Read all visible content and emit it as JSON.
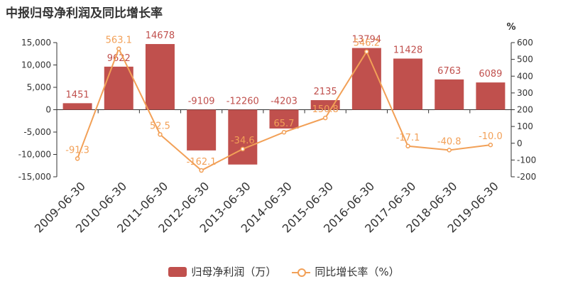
{
  "title": "中报归母净利润及同比增长率",
  "colors": {
    "bar": "#c0504d",
    "line": "#f2a057",
    "axis": "#333333",
    "grid": "#dddddd"
  },
  "chart_data": {
    "type": "bar+line",
    "categories": [
      "2009-06-30",
      "2010-06-30",
      "2011-06-30",
      "2012-06-30",
      "2013-06-30",
      "2014-06-30",
      "2015-06-30",
      "2016-06-30",
      "2017-06-30",
      "2018-06-30",
      "2019-06-30"
    ],
    "series": [
      {
        "name": "归母净利润（万）",
        "type": "bar",
        "axis": "left",
        "values": [
          1451,
          9622,
          14678,
          -9109,
          -12260,
          -4203,
          2135,
          13794,
          11428,
          6763,
          6089
        ],
        "labels": [
          "1451",
          "9622",
          "14678",
          "-9109",
          "-12260",
          "-4203",
          "2135",
          "13794",
          "11428",
          "6763",
          "6089"
        ]
      },
      {
        "name": "同比增长率（%）",
        "type": "line",
        "axis": "right",
        "values": [
          -91.3,
          563.1,
          52.5,
          -162.1,
          -34.6,
          65.7,
          150.8,
          546.2,
          -17.1,
          -40.8,
          -10.0
        ],
        "labels": [
          "-91.3",
          "563.1",
          "52.5",
          "-162.1",
          "-34.6",
          "65.7",
          "150.8",
          "546.2",
          "-17.1",
          "-40.8",
          "-10.0"
        ]
      }
    ],
    "y_left": {
      "ylim": [
        -15000,
        15000
      ],
      "ticks": [
        15000,
        10000,
        5000,
        0,
        -5000,
        -10000,
        -15000
      ],
      "tick_labels": [
        "15,000",
        "10,000",
        "5,000",
        "0",
        "-5,000",
        "-10,000",
        "-15,000"
      ]
    },
    "y_right": {
      "unit": "%",
      "ylim": [
        -200,
        600
      ],
      "ticks": [
        600,
        500,
        400,
        300,
        200,
        100,
        0,
        -100,
        -200
      ],
      "tick_labels": [
        "600",
        "500",
        "400",
        "300",
        "200",
        "100",
        "0",
        "-100",
        "-200"
      ]
    },
    "legend": {
      "position": "bottom"
    },
    "grid": false
  }
}
